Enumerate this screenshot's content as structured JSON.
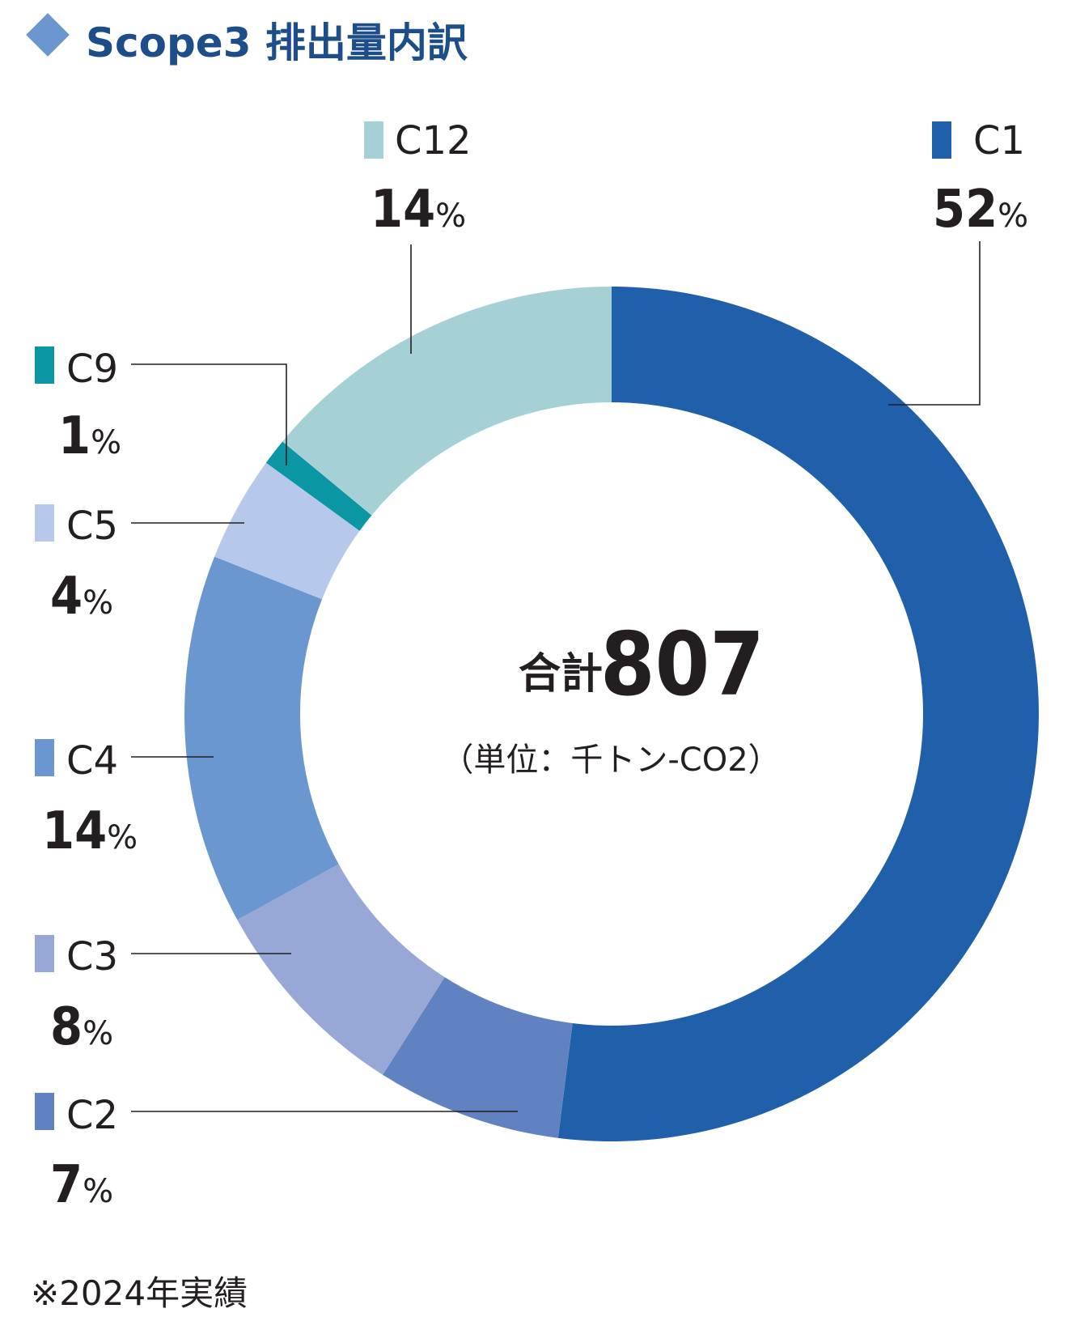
{
  "title": "Scope3 排出量内訳",
  "title_marker_color": "#6b96cf",
  "chart_data": {
    "type": "donut",
    "title": "Scope3 排出量内訳",
    "total_label": "合計",
    "total_value": "807",
    "unit": "（単位：千トン-CO2）",
    "order": "clockwise from 12 o'clock",
    "series": [
      {
        "category": "C1",
        "value": 52,
        "pct_label": "52",
        "color": "#2060aa"
      },
      {
        "category": "C2",
        "value": 7,
        "pct_label": "7",
        "color": "#6082c0"
      },
      {
        "category": "C3",
        "value": 8,
        "pct_label": "8",
        "color": "#97a8d6"
      },
      {
        "category": "C4",
        "value": 14,
        "pct_label": "14",
        "color": "#6b97d0"
      },
      {
        "category": "C5",
        "value": 4,
        "pct_label": "4",
        "color": "#b6c9ea"
      },
      {
        "category": "C9",
        "value": 1,
        "pct_label": "1",
        "color": "#0a96a3"
      },
      {
        "category": "C12",
        "value": 14,
        "pct_label": "14",
        "color": "#a5d1d6"
      }
    ],
    "percent_sign": "%"
  },
  "note": "※2024年実績"
}
